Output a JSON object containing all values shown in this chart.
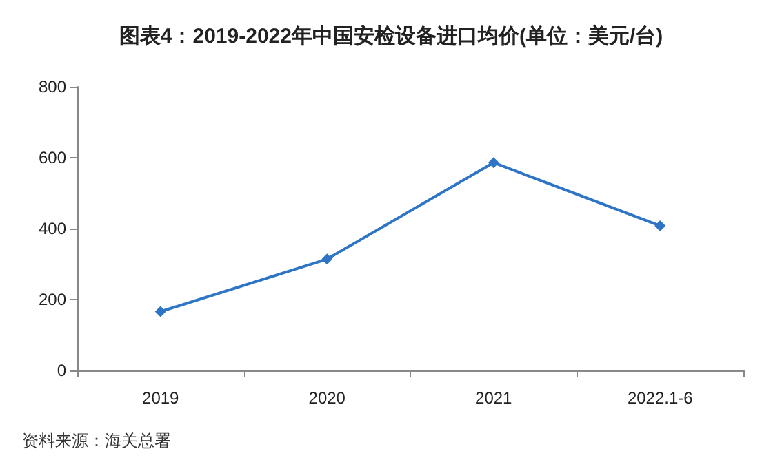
{
  "chart_data": {
    "type": "line",
    "title": "图表4：2019-2022年中国安检设备进口均价(单位：美元/台)",
    "categories": [
      "2019",
      "2020",
      "2021",
      "2022.1-6"
    ],
    "series": [
      {
        "color": "#2e75c6",
        "values": [
          166,
          314,
          586,
          408
        ]
      }
    ],
    "ylim": [
      0,
      800
    ],
    "yticks": [
      0,
      200,
      400,
      600,
      800
    ],
    "grid": false,
    "marker": "diamond",
    "line_style": "solid",
    "annotations": [
      "资料来源：海关总署"
    ]
  }
}
